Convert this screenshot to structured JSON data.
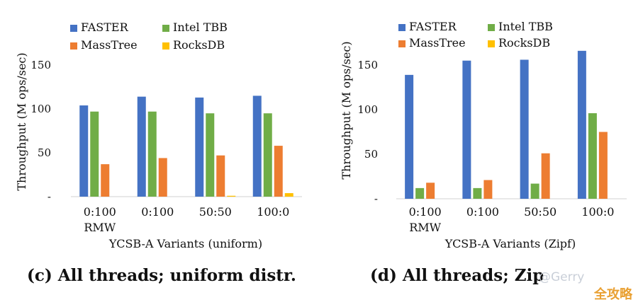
{
  "chart_data": [
    {
      "type": "bar",
      "title": "(c) All threads; uniform distr.",
      "xlabel": "YCSB-A Variants (uniform)",
      "ylabel": "Throughput (M ops/sec)",
      "ylim": [
        0,
        175
      ],
      "yticks": [
        "150",
        "100",
        "50",
        "-"
      ],
      "ytick_values": [
        150,
        100,
        50,
        0
      ],
      "categories": [
        "0:100",
        "0:100",
        "50:50",
        "100:0"
      ],
      "category_sublabels": [
        "RMW",
        "",
        "",
        ""
      ],
      "series": [
        {
          "name": "FASTER",
          "color": "#4472c4",
          "values": [
            104,
            114,
            113,
            115
          ]
        },
        {
          "name": "Intel TBB",
          "color": "#70ad47",
          "values": [
            97,
            97,
            95,
            95
          ]
        },
        {
          "name": "MassTree",
          "color": "#ed7d31",
          "values": [
            37,
            44,
            47,
            58
          ]
        },
        {
          "name": "RocksDB",
          "color": "#ffc000",
          "values": [
            0,
            0,
            1,
            4
          ]
        }
      ]
    },
    {
      "type": "bar",
      "title": "(d) All threads; Zipf distr.",
      "xlabel": "YCSB-A Variants (Zipf)",
      "ylabel": "Throughput (M ops/sec)",
      "ylim": [
        0,
        175
      ],
      "yticks": [
        "150",
        "100",
        "50",
        "-"
      ],
      "ytick_values": [
        150,
        100,
        50,
        0
      ],
      "categories": [
        "0:100",
        "0:100",
        "50:50",
        "100:0"
      ],
      "category_sublabels": [
        "RMW",
        "",
        "",
        ""
      ],
      "series": [
        {
          "name": "FASTER",
          "color": "#4472c4",
          "values": [
            139,
            155,
            156,
            166
          ]
        },
        {
          "name": "Intel TBB",
          "color": "#70ad47",
          "values": [
            12,
            12,
            17,
            96
          ]
        },
        {
          "name": "MassTree",
          "color": "#ed7d31",
          "values": [
            18,
            21,
            51,
            75
          ]
        },
        {
          "name": "RocksDB",
          "color": "#ffc000",
          "values": [
            0,
            0,
            0,
            0
          ]
        }
      ]
    }
  ],
  "captions": {
    "c": "(c) All threads; uniform distr.",
    "d": "(d) All threads; Zip"
  },
  "watermark": {
    "handle": "@Gerry",
    "cn": "全攻略"
  }
}
